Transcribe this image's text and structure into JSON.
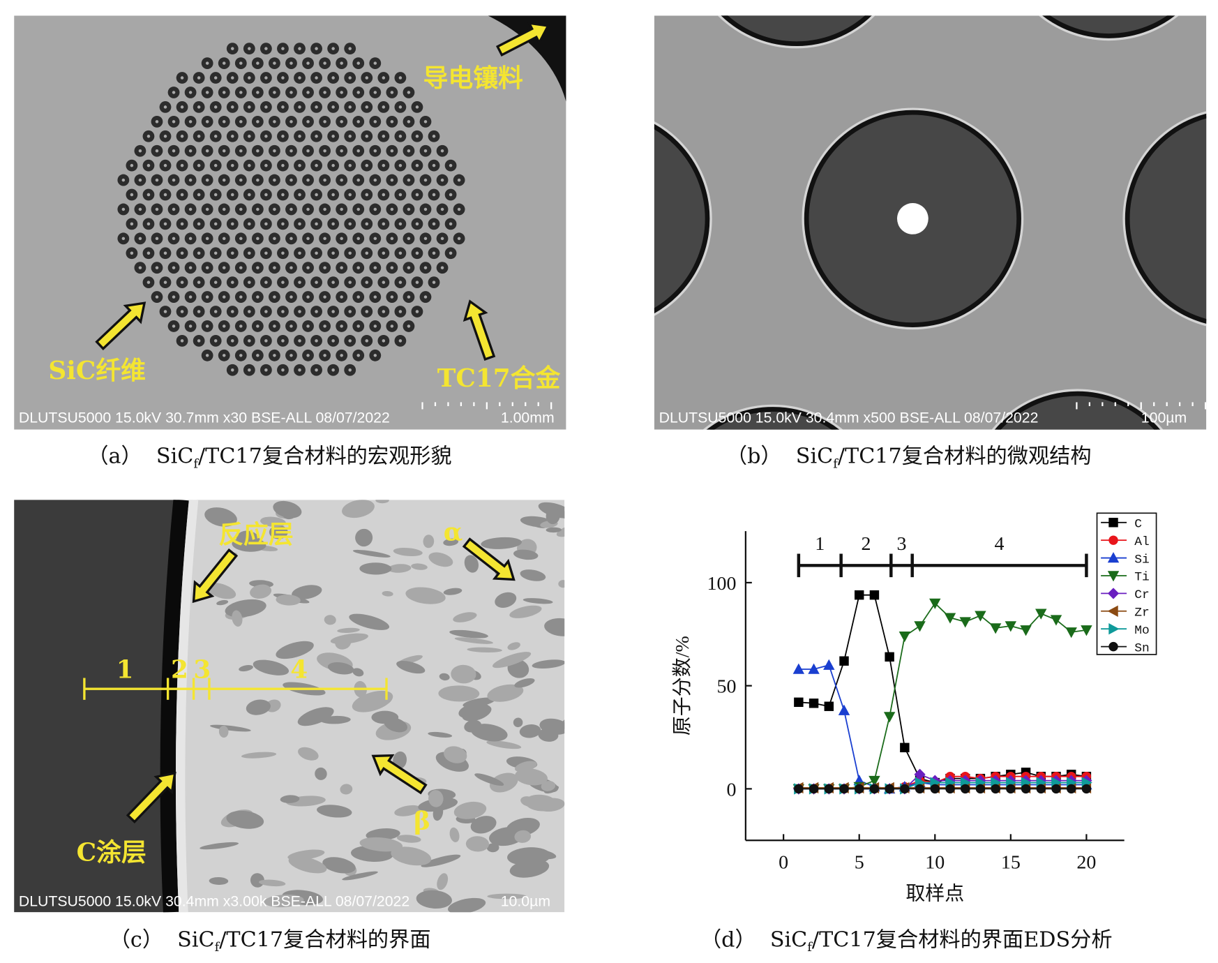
{
  "panels": [
    {
      "info": "DLUTSU5000 15.0kV 30.7mm x30 BSE-ALL 08/07/2022",
      "scale": "1.00mm",
      "annotations": [
        "导电镶料",
        "SiC纤维",
        "TC17合金"
      ],
      "caption": {
        "label": "（a）",
        "pre": "SiC",
        "sub": "f",
        "post": "/TC17复合材料的宏观形貌"
      }
    },
    {
      "info": "DLUTSU5000 15.0kV 30.4mm x500 BSE-ALL 08/07/2022",
      "scale": "100µm",
      "caption": {
        "label": "（b）",
        "pre": "SiC",
        "sub": "f",
        "post": "/TC17复合材料的微观结构"
      }
    },
    {
      "info": "DLUTSU5000 15.0kV 30.4mm x3.00k BSE-ALL 08/07/2022",
      "scale": "10.0µm",
      "annotations": [
        "反应层",
        "α",
        "β",
        "C涂层",
        "1",
        "2",
        "3",
        "4"
      ],
      "caption": {
        "label": "（c）",
        "pre": "SiC",
        "sub": "f",
        "post": "/TC17复合材料的界面"
      }
    },
    {
      "caption": {
        "label": "（d）",
        "pre": "SiC",
        "sub": "f",
        "post": "/TC17复合材料的界面EDS分析"
      }
    }
  ],
  "chart_data": {
    "type": "line",
    "x_label": "取样点",
    "y_label": "原子分数/%",
    "x": [
      1,
      2,
      3,
      4,
      5,
      6,
      7,
      8,
      9,
      10,
      11,
      12,
      13,
      14,
      15,
      16,
      17,
      18,
      19,
      20
    ],
    "xlim": [
      -2.5,
      22.5
    ],
    "xticks": [
      0,
      5,
      10,
      15,
      20
    ],
    "ylim": [
      -25,
      125
    ],
    "yticks": [
      0,
      50,
      100
    ],
    "legend": "upper right",
    "regions": {
      "bounds": [
        1,
        3.8,
        7.1,
        8.5,
        20
      ],
      "labels": [
        "1",
        "2",
        "3",
        "4"
      ]
    },
    "series": [
      {
        "name": "C",
        "color": "#000000",
        "marker": "square",
        "values": [
          42,
          41.5,
          40,
          62,
          94,
          94,
          64,
          20,
          5,
          3,
          5,
          5,
          5,
          6,
          7,
          8,
          6,
          6,
          7,
          6
        ]
      },
      {
        "name": "Al",
        "color": "#e8151b",
        "marker": "circle",
        "values": [
          0,
          0,
          0,
          0,
          0,
          0,
          0,
          1,
          4,
          3,
          6,
          6,
          5,
          6,
          6,
          6,
          6,
          6,
          6,
          6
        ]
      },
      {
        "name": "Si",
        "color": "#1a3fd0",
        "marker": "up",
        "values": [
          58,
          58,
          60,
          38,
          4,
          1,
          0,
          1,
          3,
          2,
          2,
          2,
          2,
          2,
          2,
          2,
          2,
          2,
          2,
          2
        ]
      },
      {
        "name": "Ti",
        "color": "#1a6b1a",
        "marker": "down",
        "values": [
          0,
          0,
          0,
          0,
          1,
          4,
          35,
          74,
          79,
          90,
          83,
          81,
          84,
          78,
          79,
          77,
          85,
          82,
          76,
          77
        ]
      },
      {
        "name": "Cr",
        "color": "#6a1fc0",
        "marker": "diamond",
        "values": [
          0,
          0,
          0,
          0,
          0,
          0,
          0,
          0,
          7,
          4,
          4,
          4,
          4,
          4,
          4,
          4,
          4,
          4,
          4,
          4
        ]
      },
      {
        "name": "Zr",
        "color": "#8b4a12",
        "marker": "left",
        "values": [
          0.5,
          0.5,
          0.5,
          0.5,
          0.5,
          0.5,
          0.5,
          0.5,
          0.5,
          0.5,
          0.5,
          0.5,
          0.5,
          0.5,
          0.5,
          0.5,
          0.5,
          0.5,
          0.5,
          0.5
        ]
      },
      {
        "name": "Mo",
        "color": "#0f9a9a",
        "marker": "right",
        "values": [
          0,
          0,
          0,
          0,
          0,
          0,
          0,
          0,
          3,
          3,
          3,
          3,
          3,
          3,
          3,
          3,
          3,
          3,
          3,
          3
        ]
      },
      {
        "name": "Sn",
        "color": "#111111",
        "marker": "circle",
        "values": [
          0,
          0,
          0,
          0,
          0,
          0,
          0,
          0,
          0,
          0,
          0,
          0,
          0,
          0,
          0,
          0,
          0,
          0,
          0,
          0
        ]
      }
    ]
  }
}
